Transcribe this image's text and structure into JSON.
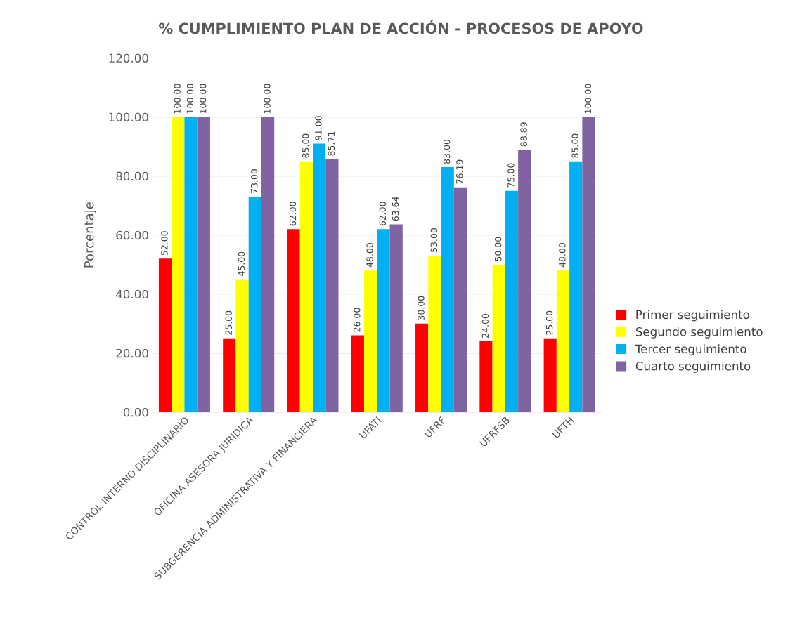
{
  "chart_data": {
    "type": "bar",
    "title": "% CUMPLIMIENTO PLAN DE ACCIÓN - PROCESOS DE APOYO",
    "ylabel": "Porcentaje",
    "categories": [
      "CONTROL INTERNO DISCIPLINARIO",
      "OFICINA ASESORA JURIDICA",
      "SUBGERENCIA ADMINISTRATIVA Y FINANCIERA",
      "UFATI",
      "UFRF",
      "UFRFSB",
      "UFTH"
    ],
    "series": [
      {
        "name": "Primer seguimiento",
        "color": "#ff0000",
        "values": [
          52,
          25,
          62,
          26,
          30,
          24,
          25
        ],
        "value_labels": [
          "52.00",
          "25.00",
          "62.00",
          "26.00",
          "30.00",
          "24.00",
          "25.00"
        ]
      },
      {
        "name": "Segundo seguimiento",
        "color": "#ffff00",
        "values": [
          100,
          45,
          85,
          48,
          53,
          50,
          48
        ],
        "value_labels": [
          "100.00",
          "45.00",
          "85.00",
          "48.00",
          "53.00",
          "50.00",
          "48.00"
        ]
      },
      {
        "name": "Tercer seguimiento",
        "color": "#00b0f0",
        "values": [
          100,
          73,
          91,
          62,
          83,
          75,
          85
        ],
        "value_labels": [
          "100.00",
          "73.00",
          "91.00",
          "62.00",
          "83.00",
          "75.00",
          "85.00"
        ]
      },
      {
        "name": "Cuarto seguimiento",
        "color": "#8064a2",
        "values": [
          100,
          100,
          85.71,
          63.64,
          76.19,
          88.89,
          100
        ],
        "value_labels": [
          "100.00",
          "100.00",
          "85.71",
          "63.64",
          "76.19",
          "88.89",
          "100.00"
        ]
      }
    ],
    "ylim": [
      0,
      120
    ],
    "yticks": [
      {
        "value": 0,
        "label": "0.00"
      },
      {
        "value": 20,
        "label": "20.00"
      },
      {
        "value": 40,
        "label": "40.00"
      },
      {
        "value": 60,
        "label": "60.00"
      },
      {
        "value": 80,
        "label": "80.00"
      },
      {
        "value": 100,
        "label": "100.00"
      },
      {
        "value": 120,
        "label": "120.00"
      }
    ],
    "grid": "y",
    "legend": "right"
  }
}
